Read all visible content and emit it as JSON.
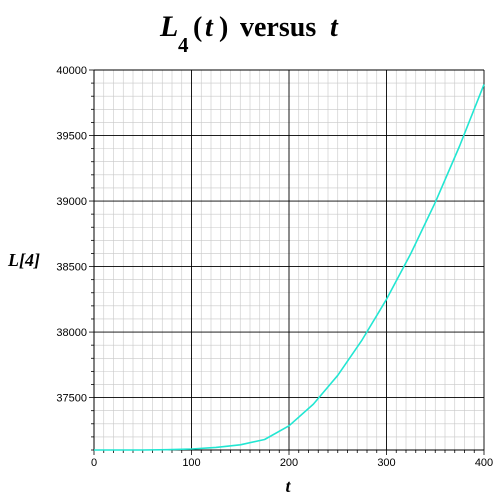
{
  "chart_data": {
    "type": "line",
    "title": {
      "symbol": "L",
      "subscript": "4",
      "open_paren": "(",
      "variable": "t",
      "close_paren": ")",
      "rest_plain": "versus",
      "rest_var": "t"
    },
    "xlabel": "t",
    "ylabel": "L[4]",
    "xlim": [
      0,
      400
    ],
    "ylim": [
      37100,
      40000
    ],
    "x_major_ticks": [
      0,
      100,
      200,
      300,
      400
    ],
    "x_minor_step": 10,
    "y_major_ticks": [
      37500,
      38000,
      38500,
      39000,
      39500,
      40000
    ],
    "y_minor_step": 100,
    "x_tick_labels": [
      "0",
      "100",
      "200",
      "300",
      "400"
    ],
    "y_tick_labels": [
      "37500",
      "38000",
      "38500",
      "39000",
      "39500",
      "40000"
    ],
    "grid": true,
    "series": [
      {
        "color": "#22e6d2",
        "x": [
          0,
          25,
          50,
          75,
          100,
          125,
          150,
          175,
          200,
          225,
          250,
          275,
          300,
          325,
          350,
          375,
          400
        ],
        "y": [
          37100,
          37100,
          37100,
          37102,
          37108,
          37120,
          37140,
          37180,
          37285,
          37450,
          37670,
          37940,
          38250,
          38600,
          38990,
          39420,
          39890
        ]
      }
    ],
    "colors": {
      "major_grid": "#000000",
      "minor_grid": "#c8c8c8",
      "line": "#22e6d2"
    }
  }
}
